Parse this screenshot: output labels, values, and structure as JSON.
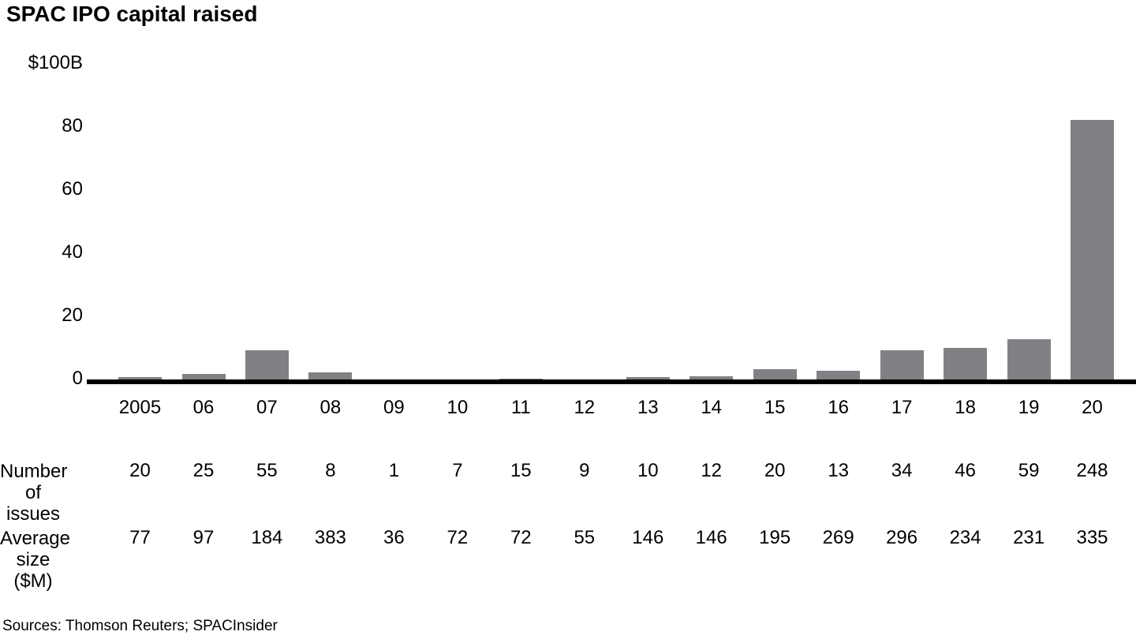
{
  "title": "SPAC IPO capital raised",
  "source": "Sources: Thomson Reuters; SPACInsider",
  "colors": {
    "bar": "#808184",
    "axis": "#000000",
    "text": "#000000",
    "background": "#ffffff"
  },
  "chart_data": {
    "type": "bar",
    "title": "SPAC IPO capital raised",
    "ylabel": "$100B",
    "ylim": [
      0,
      100
    ],
    "grid": false,
    "legend": false,
    "y_ticks": [
      {
        "label": "$100B",
        "value": 100
      },
      {
        "label": "80",
        "value": 80
      },
      {
        "label": "60",
        "value": 60
      },
      {
        "label": "40",
        "value": 40
      },
      {
        "label": "20",
        "value": 20
      },
      {
        "label": "0",
        "value": 0
      }
    ],
    "categories": [
      "2005",
      "06",
      "07",
      "08",
      "09",
      "10",
      "11",
      "12",
      "13",
      "14",
      "15",
      "16",
      "17",
      "18",
      "19",
      "20"
    ],
    "values_billions": [
      1.5,
      2.4,
      10.1,
      3.1,
      0.04,
      0.5,
      1.1,
      0.5,
      1.5,
      1.8,
      3.9,
      3.5,
      10.1,
      10.8,
      13.6,
      83.1
    ],
    "table_rows": [
      {
        "label_line1": "Number",
        "label_line2": "of issues",
        "values": [
          "20",
          "25",
          "55",
          "8",
          "1",
          "7",
          "15",
          "9",
          "10",
          "12",
          "20",
          "13",
          "34",
          "46",
          "59",
          "248"
        ]
      },
      {
        "label_line1": "Average",
        "label_line2": "size ($M)",
        "values": [
          "77",
          "97",
          "184",
          "383",
          "36",
          "72",
          "72",
          "55",
          "146",
          "146",
          "195",
          "269",
          "296",
          "234",
          "231",
          "335"
        ]
      }
    ]
  },
  "layout_note": ""
}
